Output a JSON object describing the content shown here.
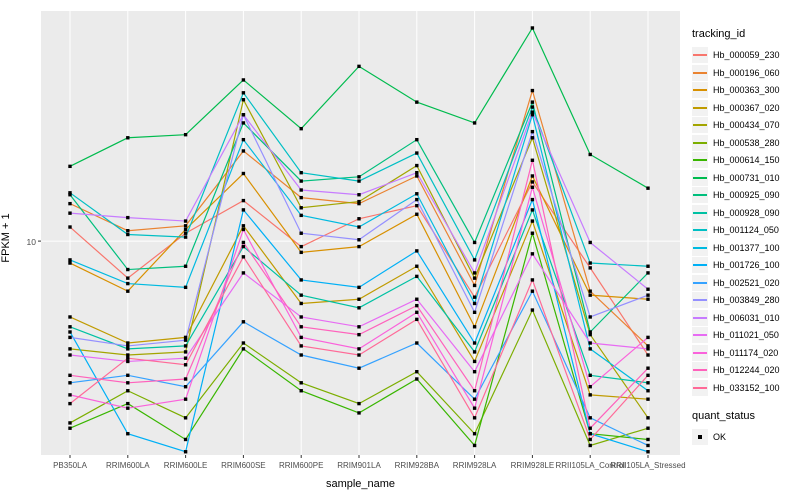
{
  "axes": {
    "y_tick_label": "10"
  },
  "legend": {
    "tracking_title": "tracking_id",
    "quant_title": "quant_status",
    "quant_items": [
      {
        "label": "OK",
        "marker": "filled-square"
      }
    ]
  },
  "chart_data": {
    "type": "line",
    "title": "",
    "xlabel": "sample_name",
    "ylabel": "FPKM + 1",
    "y_scale": "log10",
    "y_ticks": [
      10
    ],
    "ylim": [
      2.05,
      55
    ],
    "grid": true,
    "legend_position": "right",
    "panel_bg": "#EBEBEB",
    "grid_color": "#FFFFFF",
    "point_marker": "filled-square",
    "point_color": "#000000",
    "categories": [
      "PB350LA",
      "RRIM600LA",
      "RRIM600LE",
      "RRIM600SE",
      "RRIM600PE",
      "RRIM901LA",
      "RRIM928BA",
      "RRIM928LA",
      "RRIM928LE",
      "RRII105LA_Control",
      "RRII105LA_Stressed"
    ],
    "series": [
      {
        "name": "Hb_000059_230",
        "color": "#F8766D",
        "values": [
          11.1,
          7.6,
          10.6,
          13.5,
          9.6,
          11.8,
          13.0,
          6.6,
          15.5,
          8.2,
          4.3
        ]
      },
      {
        "name": "Hb_000196_060",
        "color": "#EA8331",
        "values": [
          13.2,
          10.8,
          11.2,
          19.5,
          13.8,
          13.2,
          16.2,
          7.2,
          30.5,
          6.9,
          4.6
        ]
      },
      {
        "name": "Hb_000363_300",
        "color": "#D89000",
        "values": [
          8.5,
          6.9,
          10.9,
          16.5,
          9.2,
          9.6,
          12.2,
          5.3,
          16.2,
          6.7,
          6.5
        ]
      },
      {
        "name": "Hb_000367_020",
        "color": "#C09B00",
        "values": [
          5.7,
          4.7,
          4.9,
          11.2,
          6.3,
          6.5,
          8.3,
          4.1,
          11.6,
          3.2,
          3.1
        ]
      },
      {
        "name": "Hb_000434_070",
        "color": "#A3A500",
        "values": [
          4.5,
          4.3,
          4.4,
          28.5,
          12.8,
          13.4,
          17.5,
          7.6,
          21.5,
          5.0,
          2.7
        ]
      },
      {
        "name": "Hb_000538_280",
        "color": "#7CAE00",
        "values": [
          2.6,
          3.3,
          2.7,
          4.7,
          3.5,
          3.0,
          3.8,
          2.4,
          6.0,
          2.2,
          2.5
        ]
      },
      {
        "name": "Hb_000614_150",
        "color": "#39B600",
        "values": [
          2.5,
          3.0,
          2.3,
          4.5,
          3.3,
          2.8,
          3.6,
          2.2,
          10.6,
          2.4,
          2.3
        ]
      },
      {
        "name": "Hb_000731_010",
        "color": "#00BB4E",
        "values": [
          17.4,
          21.5,
          22.0,
          33.0,
          23.0,
          36.5,
          28.0,
          24.0,
          48.5,
          19.0,
          14.8
        ]
      },
      {
        "name": "Hb_000925_090",
        "color": "#00BF7D",
        "values": [
          14.1,
          8.1,
          8.3,
          24.0,
          15.6,
          16.1,
          21.2,
          9.9,
          28.0,
          5.1,
          7.9
        ]
      },
      {
        "name": "Hb_000928_090",
        "color": "#00C1A3",
        "values": [
          5.3,
          4.5,
          4.6,
          9.6,
          6.7,
          6.1,
          7.7,
          4.4,
          12.6,
          3.7,
          3.5
        ]
      },
      {
        "name": "Hb_001124_050",
        "color": "#00BFC4",
        "values": [
          14.3,
          10.5,
          10.3,
          30.0,
          16.6,
          15.6,
          19.2,
          8.7,
          27.0,
          8.5,
          8.3
        ]
      },
      {
        "name": "Hb_001377_100",
        "color": "#00BAE0",
        "values": [
          8.7,
          7.3,
          7.1,
          21.2,
          12.1,
          11.1,
          14.2,
          6.3,
          25.5,
          4.5,
          3.3
        ]
      },
      {
        "name": "Hb_001726_100",
        "color": "#00B0F6",
        "values": [
          5.1,
          2.4,
          2.1,
          12.6,
          7.5,
          7.1,
          9.3,
          4.7,
          13.6,
          2.4,
          2.1
        ]
      },
      {
        "name": "Hb_002521_020",
        "color": "#35A2FF",
        "values": [
          3.5,
          3.7,
          3.4,
          5.5,
          4.3,
          3.9,
          4.7,
          3.1,
          6.9,
          2.7,
          2.2
        ]
      },
      {
        "name": "Hb_003849_280",
        "color": "#9590FF",
        "values": [
          4.9,
          4.6,
          4.8,
          25.5,
          10.6,
          10.1,
          13.6,
          5.9,
          22.5,
          5.7,
          6.7
        ]
      },
      {
        "name": "Hb_006031_010",
        "color": "#C77CFF",
        "values": [
          12.3,
          11.9,
          11.6,
          25.5,
          14.6,
          14.1,
          16.6,
          7.9,
          26.0,
          9.9,
          7.0
        ]
      },
      {
        "name": "Hb_011021_050",
        "color": "#E76BF3",
        "values": [
          4.3,
          4.1,
          4.2,
          7.9,
          5.7,
          5.3,
          6.5,
          3.8,
          9.1,
          4.7,
          4.5
        ]
      },
      {
        "name": "Hb_011174_020",
        "color": "#FA62DB",
        "values": [
          3.2,
          2.9,
          3.1,
          10.9,
          4.9,
          4.5,
          5.9,
          2.9,
          14.9,
          3.4,
          4.9
        ]
      },
      {
        "name": "Hb_012244_020",
        "color": "#FF62BC",
        "values": [
          3.7,
          3.5,
          3.6,
          9.9,
          5.3,
          5.0,
          6.2,
          3.3,
          18.2,
          2.5,
          3.9
        ]
      },
      {
        "name": "Hb_033152_100",
        "color": "#FF6A98",
        "values": [
          3.0,
          4.2,
          4.0,
          8.9,
          4.6,
          4.3,
          5.6,
          2.7,
          7.5,
          2.3,
          3.7
        ]
      }
    ]
  }
}
